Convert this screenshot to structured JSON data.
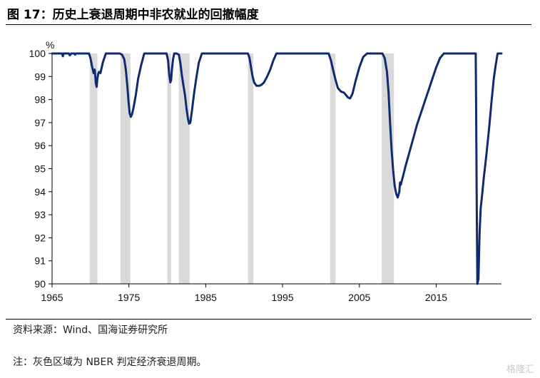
{
  "figure_title": "图 17：历史上衰退周期中非农就业的回撤幅度",
  "source": "资料来源：Wind、国海证券研究所",
  "note": "注：灰色区域为 NBER 判定经济衰退周期。",
  "watermark": "格隆汇",
  "chart_data": {
    "type": "line",
    "title": "",
    "xlabel": "",
    "ylabel": "%",
    "xlim": [
      1965,
      2023.5
    ],
    "ylim": [
      90,
      100
    ],
    "x_ticks": [
      1965,
      1975,
      1985,
      1995,
      2005,
      2015
    ],
    "y_ticks": [
      90,
      91,
      92,
      93,
      94,
      95,
      96,
      97,
      98,
      99,
      100
    ],
    "line_color": "#0d2b6e",
    "shade_color": "#d9d9d9",
    "recessions": [
      [
        1969.9,
        1970.9
      ],
      [
        1973.9,
        1975.2
      ],
      [
        1980.0,
        1980.5
      ],
      [
        1981.5,
        1982.9
      ],
      [
        1990.5,
        1991.2
      ],
      [
        2001.2,
        2001.9
      ],
      [
        2007.9,
        2009.5
      ]
    ],
    "series": [
      {
        "x": [
          1965.0,
          1966.3,
          1966.4,
          1966.5,
          1967.2,
          1967.3,
          1967.5,
          1967.9,
          1968.0,
          1968.1,
          1969.8,
          1970.0,
          1970.2,
          1970.4,
          1970.55,
          1970.7,
          1970.8,
          1970.9,
          1971.0,
          1971.1,
          1971.3,
          1971.6,
          1972.0,
          1972.5,
          1973.0,
          1973.8,
          1974.1,
          1974.4,
          1974.6,
          1974.8,
          1974.95,
          1975.1,
          1975.25,
          1975.4,
          1975.6,
          1975.9,
          1976.2,
          1976.6,
          1977.0,
          1978.0,
          1979.9,
          1980.1,
          1980.25,
          1980.4,
          1980.5,
          1980.6,
          1980.75,
          1980.9,
          1981.2,
          1981.5,
          1981.7,
          1981.9,
          1982.1,
          1982.3,
          1982.5,
          1982.7,
          1982.85,
          1983.0,
          1983.2,
          1983.5,
          1983.8,
          1984.1,
          1984.5,
          1985.0,
          1990.5,
          1990.7,
          1990.9,
          1991.1,
          1991.3,
          1991.6,
          1992.0,
          1992.3,
          1992.6,
          1993.0,
          1993.4,
          1993.8,
          1994.2,
          1995.0,
          2001.0,
          2001.3,
          2001.6,
          2001.9,
          2002.2,
          2002.6,
          2003.0,
          2003.5,
          2003.8,
          2004.1,
          2004.5,
          2005.0,
          2005.5,
          2006.0,
          2008.0,
          2008.3,
          2008.6,
          2008.8,
          2009.0,
          2009.2,
          2009.4,
          2009.6,
          2009.8,
          2010.0,
          2010.2,
          2010.3,
          2010.4,
          2010.5,
          2010.7,
          2011.0,
          2011.5,
          2012.0,
          2012.5,
          2013.0,
          2013.5,
          2014.0,
          2014.5,
          2015.0,
          2015.5,
          2016.0,
          2016.3,
          2020.15,
          2020.2,
          2020.28,
          2020.36,
          2020.5,
          2020.65,
          2020.8,
          2020.95,
          2021.2,
          2021.5,
          2021.9,
          2022.2,
          2022.5,
          2022.75,
          2023.0,
          2023.5
        ],
        "values": [
          100.0,
          100.0,
          99.88,
          100.0,
          100.0,
          99.92,
          100.0,
          100.0,
          99.95,
          100.0,
          100.0,
          99.8,
          99.45,
          99.15,
          99.3,
          98.7,
          98.55,
          98.9,
          99.1,
          99.2,
          99.15,
          99.6,
          100.0,
          100.0,
          100.0,
          100.0,
          99.95,
          99.75,
          99.3,
          98.6,
          97.9,
          97.4,
          97.25,
          97.35,
          97.65,
          98.2,
          98.9,
          99.5,
          100.0,
          100.0,
          100.0,
          99.7,
          99.1,
          98.75,
          98.85,
          99.3,
          99.75,
          100.0,
          100.0,
          99.95,
          99.6,
          99.05,
          98.6,
          98.2,
          97.6,
          97.15,
          96.95,
          97.0,
          97.5,
          98.3,
          99.0,
          99.6,
          100.0,
          100.0,
          100.0,
          99.8,
          99.4,
          99.0,
          98.75,
          98.6,
          98.6,
          98.65,
          98.75,
          99.0,
          99.3,
          99.7,
          100.0,
          100.0,
          100.0,
          99.7,
          99.25,
          98.85,
          98.5,
          98.35,
          98.3,
          98.1,
          98.05,
          98.25,
          98.8,
          99.4,
          99.85,
          100.0,
          100.0,
          99.8,
          99.2,
          98.3,
          97.0,
          95.8,
          94.9,
          94.25,
          93.9,
          93.75,
          94.0,
          94.4,
          94.3,
          94.45,
          94.7,
          95.1,
          95.7,
          96.3,
          96.9,
          97.4,
          97.9,
          98.4,
          98.9,
          99.4,
          99.8,
          100.0,
          100.0,
          100.0,
          97.5,
          93.5,
          90.0,
          90.2,
          92.2,
          93.3,
          93.75,
          94.6,
          95.5,
          96.8,
          97.9,
          98.9,
          99.5,
          100.0,
          100.0
        ]
      }
    ]
  }
}
